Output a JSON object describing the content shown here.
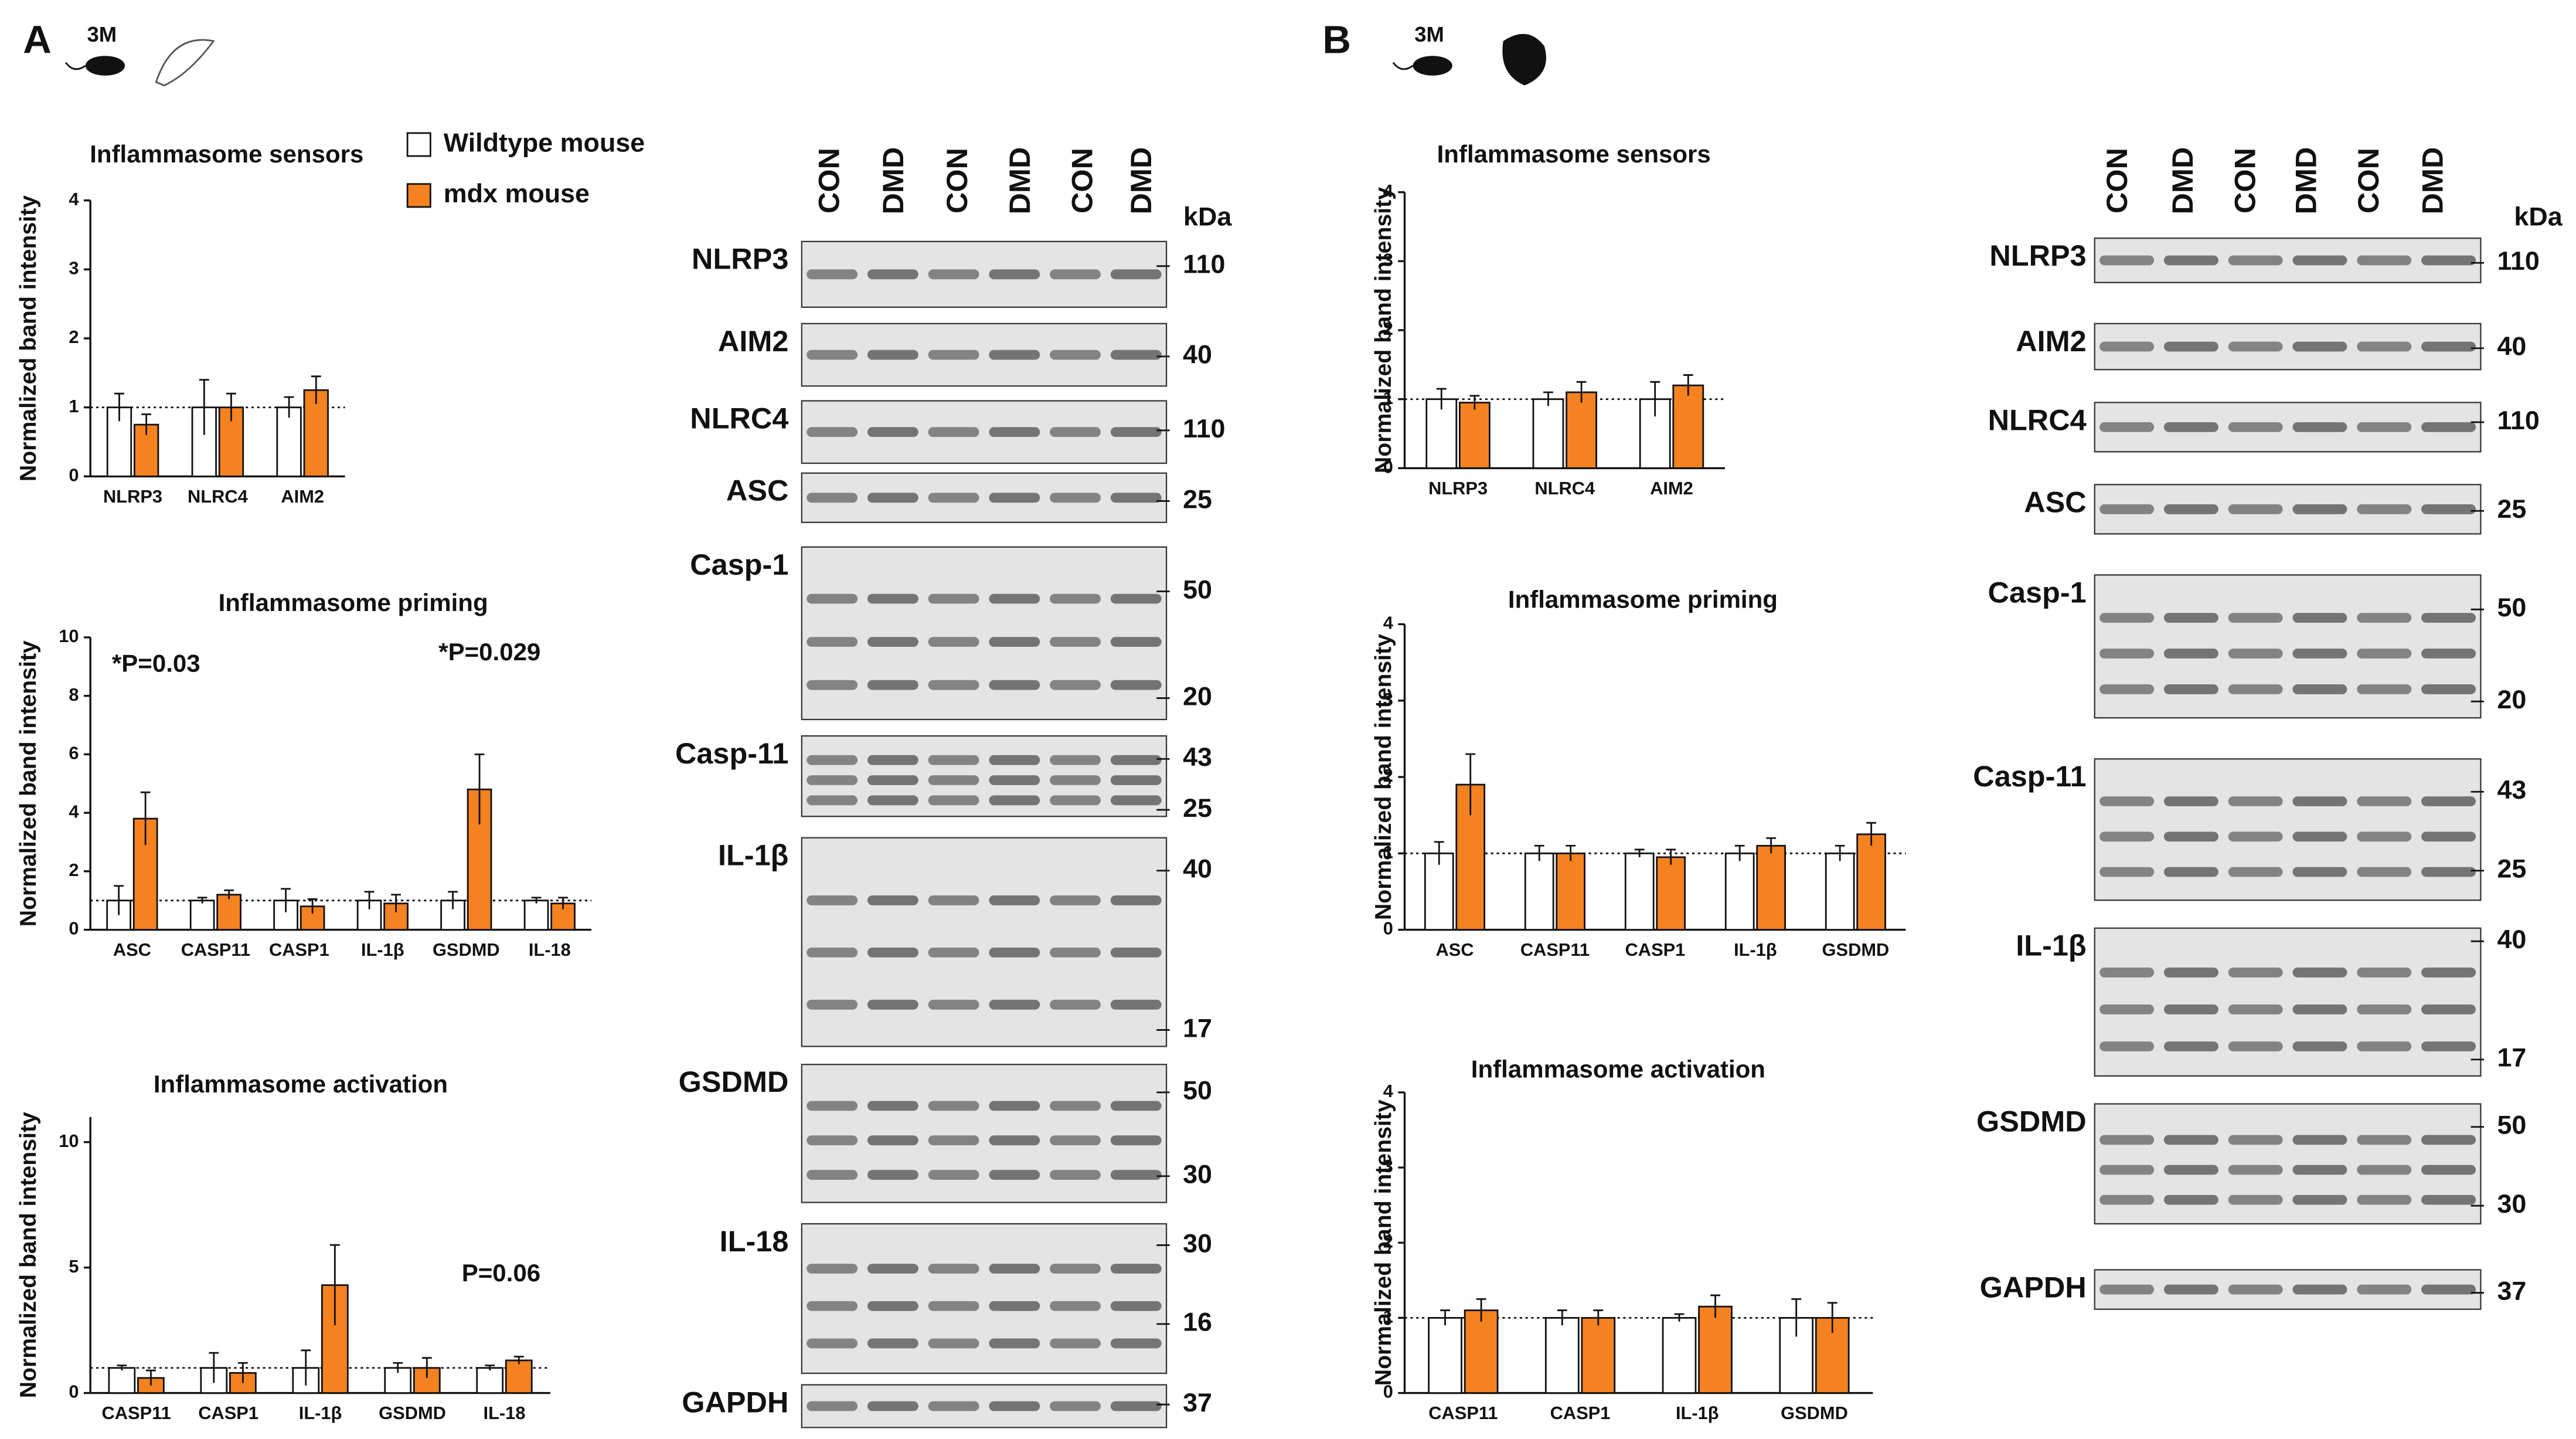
{
  "chart_data": [
    {
      "type": "bar",
      "title": "Inflammasome sensors",
      "y_label": "Normalized band intensity",
      "categories": [
        "NLRP3",
        "NLRC4",
        "AIM2"
      ],
      "series": [
        {
          "name": "Wildtype mouse",
          "color": "#ffffff",
          "values": [
            1,
            1,
            1
          ],
          "errors": [
            0.2,
            0.4,
            0.15
          ]
        },
        {
          "name": "mdx mouse",
          "color": "#f58220",
          "values": [
            0.75,
            1.0,
            1.25
          ],
          "errors": [
            0.15,
            0.2,
            0.2
          ]
        }
      ],
      "ylim": [
        0,
        4
      ],
      "yticks": [
        0,
        1,
        2,
        3,
        4
      ],
      "reference_line": 1
    },
    {
      "type": "bar",
      "title": "Inflammasome priming",
      "y_label": "Normalized band intensity",
      "categories": [
        "ASC",
        "CASP11",
        "CASP1",
        "IL-1β",
        "GSDMD",
        "IL-18"
      ],
      "series": [
        {
          "color": "#ffffff",
          "values": [
            1,
            1,
            1,
            1,
            1,
            1
          ],
          "errors": [
            0.5,
            0.1,
            0.4,
            0.3,
            0.3,
            0.1
          ]
        },
        {
          "color": "#f58220",
          "values": [
            3.8,
            1.2,
            0.8,
            0.9,
            4.8,
            0.9
          ],
          "errors": [
            0.9,
            0.15,
            0.25,
            0.3,
            1.2,
            0.2
          ]
        }
      ],
      "ylim": [
        0,
        10
      ],
      "yticks": [
        0,
        2,
        4,
        6,
        8,
        10
      ],
      "reference_line": 1,
      "annotations": [
        "*P=0.03",
        "*P=0.029"
      ]
    },
    {
      "type": "bar",
      "title": "Inflammasome activation",
      "y_label": "Normalized band intensity",
      "categories": [
        "CASP11",
        "CASP1",
        "IL-1β",
        "GSDMD",
        "IL-18"
      ],
      "series": [
        {
          "color": "#ffffff",
          "values": [
            1,
            1,
            1,
            1,
            1
          ],
          "errors": [
            0.1,
            0.6,
            0.7,
            0.2,
            0.1
          ]
        },
        {
          "color": "#f58220",
          "values": [
            0.6,
            0.8,
            4.3,
            1.0,
            1.3
          ],
          "errors": [
            0.3,
            0.4,
            1.6,
            0.4,
            0.15
          ]
        }
      ],
      "ylim": [
        0,
        11
      ],
      "yticks": [
        0,
        5,
        10
      ],
      "reference_line": 1,
      "annotations": [
        "P=0.06"
      ]
    },
    {
      "type": "bar",
      "title": "Inflammasome sensors",
      "y_label": "Normalized band intensity",
      "categories": [
        "NLRP3",
        "NLRC4",
        "AIM2"
      ],
      "series": [
        {
          "color": "#ffffff",
          "values": [
            1,
            1,
            1
          ],
          "errors": [
            0.15,
            0.1,
            0.25
          ]
        },
        {
          "color": "#f58220",
          "values": [
            0.95,
            1.1,
            1.2
          ],
          "errors": [
            0.1,
            0.15,
            0.15
          ]
        }
      ],
      "ylim": [
        0,
        4
      ],
      "yticks": [
        0,
        1,
        2,
        3,
        4
      ],
      "reference_line": 1
    },
    {
      "type": "bar",
      "title": "Inflammasome priming",
      "y_label": "Normalized band intensity",
      "categories": [
        "ASC",
        "CASP11",
        "CASP1",
        "IL-1β",
        "GSDMD"
      ],
      "series": [
        {
          "color": "#ffffff",
          "values": [
            1,
            1,
            1,
            1,
            1
          ],
          "errors": [
            0.15,
            0.1,
            0.05,
            0.1,
            0.1
          ]
        },
        {
          "color": "#f58220",
          "values": [
            1.9,
            1.0,
            0.95,
            1.1,
            1.25
          ],
          "errors": [
            0.4,
            0.1,
            0.1,
            0.1,
            0.15
          ]
        }
      ],
      "ylim": [
        0,
        4
      ],
      "yticks": [
        0,
        1,
        2,
        3,
        4
      ],
      "reference_line": 1
    },
    {
      "type": "bar",
      "title": "Inflammasome activation",
      "y_label": "Normalized band intensity",
      "categories": [
        "CASP11",
        "CASP1",
        "IL-1β",
        "GSDMD"
      ],
      "series": [
        {
          "color": "#ffffff",
          "values": [
            1,
            1,
            1,
            1
          ],
          "errors": [
            0.1,
            0.1,
            0.05,
            0.25
          ]
        },
        {
          "color": "#f58220",
          "values": [
            1.1,
            1.0,
            1.15,
            1.0
          ],
          "errors": [
            0.15,
            0.1,
            0.15,
            0.2
          ]
        }
      ],
      "ylim": [
        0,
        4
      ],
      "yticks": [
        0,
        1,
        2,
        3,
        4
      ],
      "reference_line": 1
    }
  ],
  "panels": [
    {
      "label": "A",
      "age": "3M",
      "lanes": [
        "CON",
        "DMD",
        "CON",
        "DMD",
        "CON",
        "DMD"
      ],
      "unit": "kDa",
      "blots": [
        {
          "name": "NLRP3",
          "markers": [
            "110"
          ]
        },
        {
          "name": "AIM2",
          "markers": [
            "40"
          ]
        },
        {
          "name": "NLRC4",
          "markers": [
            "110"
          ]
        },
        {
          "name": "ASC",
          "markers": [
            "25"
          ]
        },
        {
          "name": "Casp-1",
          "markers": [
            "50",
            "20"
          ]
        },
        {
          "name": "Casp-11",
          "markers": [
            "43",
            "25"
          ]
        },
        {
          "name": "IL-1β",
          "markers": [
            "40",
            "17"
          ]
        },
        {
          "name": "GSDMD",
          "markers": [
            "50",
            "30"
          ]
        },
        {
          "name": "IL-18",
          "markers": [
            "30",
            "16"
          ]
        },
        {
          "name": "GAPDH",
          "markers": [
            "37"
          ]
        }
      ]
    },
    {
      "label": "B",
      "age": "3M",
      "lanes": [
        "CON",
        "DMD",
        "CON",
        "DMD",
        "CON",
        "DMD"
      ],
      "unit": "kDa",
      "blots": [
        {
          "name": "NLRP3",
          "markers": [
            "110"
          ]
        },
        {
          "name": "AIM2",
          "markers": [
            "40"
          ]
        },
        {
          "name": "NLRC4",
          "markers": [
            "110"
          ]
        },
        {
          "name": "ASC",
          "markers": [
            "25"
          ]
        },
        {
          "name": "Casp-1",
          "markers": [
            "50",
            "20"
          ]
        },
        {
          "name": "Casp-11",
          "markers": [
            "43",
            "25"
          ]
        },
        {
          "name": "IL-1β",
          "markers": [
            "40",
            "17"
          ]
        },
        {
          "name": "GSDMD",
          "markers": [
            "50",
            "30"
          ]
        },
        {
          "name": "GAPDH",
          "markers": [
            "37"
          ]
        }
      ]
    }
  ]
}
